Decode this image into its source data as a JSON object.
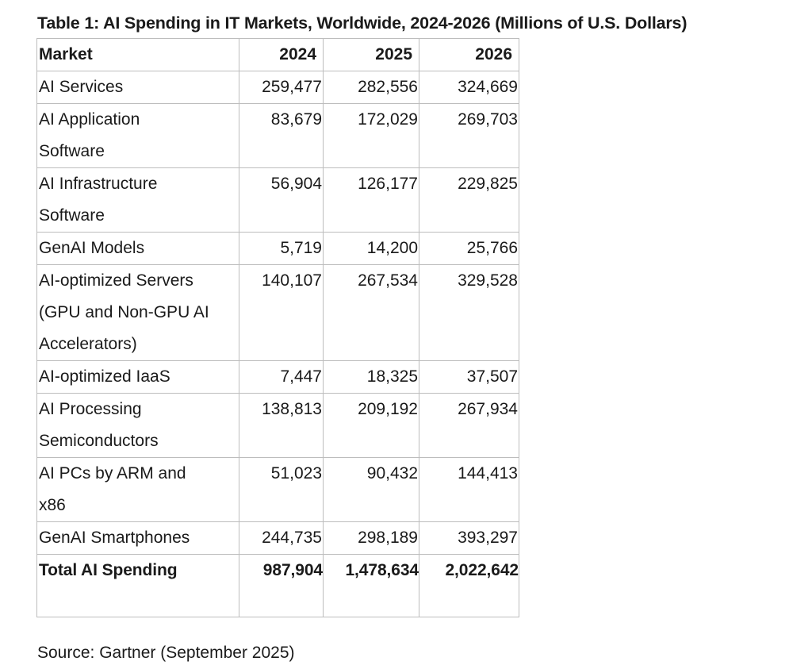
{
  "title": "Table 1: AI Spending in IT Markets, Worldwide, 2024-2026 (Millions of U.S. Dollars)",
  "header": {
    "market": "Market",
    "y2024": "2024",
    "y2025": "2025",
    "y2026": "2026"
  },
  "rows": [
    {
      "market": [
        "AI Services"
      ],
      "y2024": "259,477",
      "y2025": "282,556",
      "y2026": "324,669"
    },
    {
      "market": [
        "AI Application",
        "Software"
      ],
      "y2024": "83,679",
      "y2025": "172,029",
      "y2026": "269,703"
    },
    {
      "market": [
        "AI Infrastructure",
        "Software"
      ],
      "y2024": "56,904",
      "y2025": "126,177",
      "y2026": "229,825"
    },
    {
      "market": [
        "GenAI Models"
      ],
      "y2024": "5,719",
      "y2025": "14,200",
      "y2026": "25,766"
    },
    {
      "market": [
        "AI-optimized Servers",
        "(GPU and Non-GPU AI",
        "Accelerators)"
      ],
      "y2024": "140,107",
      "y2025": "267,534",
      "y2026": "329,528"
    },
    {
      "market": [
        "AI-optimized IaaS"
      ],
      "y2024": "7,447",
      "y2025": "18,325",
      "y2026": "37,507"
    },
    {
      "market": [
        "AI Processing",
        "Semiconductors"
      ],
      "y2024": "138,813",
      "y2025": "209,192",
      "y2026": "267,934"
    },
    {
      "market": [
        "AI PCs by ARM and",
        "x86"
      ],
      "y2024": "51,023",
      "y2025": "90,432",
      "y2026": "144,413"
    },
    {
      "market": [
        "GenAI Smartphones"
      ],
      "y2024": "244,735",
      "y2025": "298,189",
      "y2026": "393,297"
    }
  ],
  "total": {
    "market": "Total AI Spending",
    "y2024": "987,904",
    "y2025": "1,478,634",
    "y2026": "2,022,642"
  },
  "source": "Source: Gartner (September 2025)"
}
